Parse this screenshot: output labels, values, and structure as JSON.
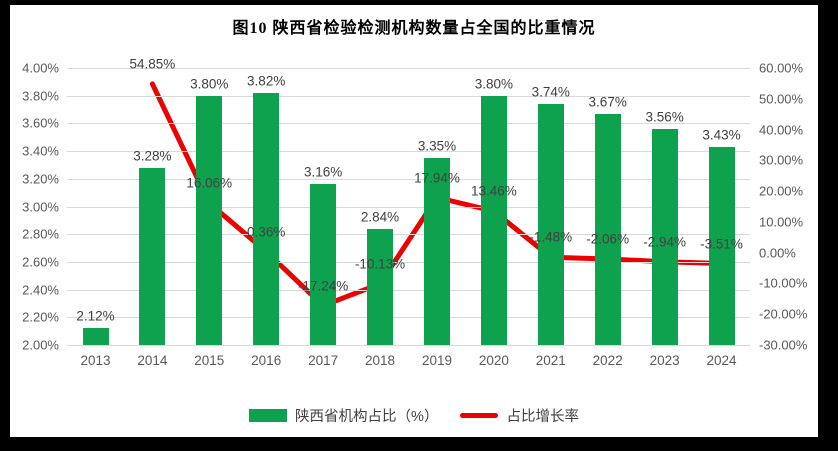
{
  "colors": {
    "bar": "#0FA24E",
    "line": "#ED0000",
    "grid": "#D9D9D9",
    "axis_text": "#595959",
    "data_label_text": "#404040",
    "panel": "#FFFFFF",
    "frame": "#000000"
  },
  "chart_data": {
    "type": "bar+line",
    "title": "图10  陕西省检验检测机构数量占全国的比重情况",
    "grid": true,
    "legend_position": "bottom",
    "categories": [
      "2013",
      "2014",
      "2015",
      "2016",
      "2017",
      "2018",
      "2019",
      "2020",
      "2021",
      "2022",
      "2023",
      "2024"
    ],
    "series": [
      {
        "name": "陕西省机构占比（%）",
        "type": "bar",
        "axis": "left",
        "values": [
          2.12,
          3.28,
          3.8,
          3.82,
          3.16,
          2.84,
          3.35,
          3.8,
          3.74,
          3.67,
          3.56,
          3.43
        ],
        "data_labels": [
          "2.12%",
          "3.28%",
          "3.80%",
          "3.82%",
          "3.16%",
          "2.84%",
          "3.35%",
          "3.80%",
          "3.74%",
          "3.67%",
          "3.56%",
          "3.43%"
        ]
      },
      {
        "name": "占比增长率",
        "type": "line",
        "axis": "right",
        "values": [
          null,
          54.85,
          16.06,
          0.36,
          -17.24,
          -10.13,
          17.94,
          13.46,
          -1.48,
          -2.06,
          -2.94,
          -3.51
        ],
        "data_labels": [
          null,
          "54.85%",
          "16.06%",
          "0.36%",
          "-17.24%",
          "-10.13%",
          "17.94%",
          "13.46%",
          "-1.48%",
          "-2.06%",
          "-2.94%",
          "-3.51%"
        ]
      }
    ],
    "left_axis": {
      "min": 2.0,
      "max": 4.0,
      "step": 0.2,
      "tick_labels": [
        "4.00%",
        "3.80%",
        "3.60%",
        "3.40%",
        "3.20%",
        "3.00%",
        "2.80%",
        "2.60%",
        "2.40%",
        "2.20%",
        "2.00%"
      ]
    },
    "right_axis": {
      "min": -30,
      "max": 60,
      "step": 10,
      "tick_labels": [
        "60.00%",
        "50.00%",
        "40.00%",
        "30.00%",
        "20.00%",
        "10.00%",
        "0.00%",
        "-10.00%",
        "-20.00%",
        "-30.00%"
      ]
    }
  }
}
